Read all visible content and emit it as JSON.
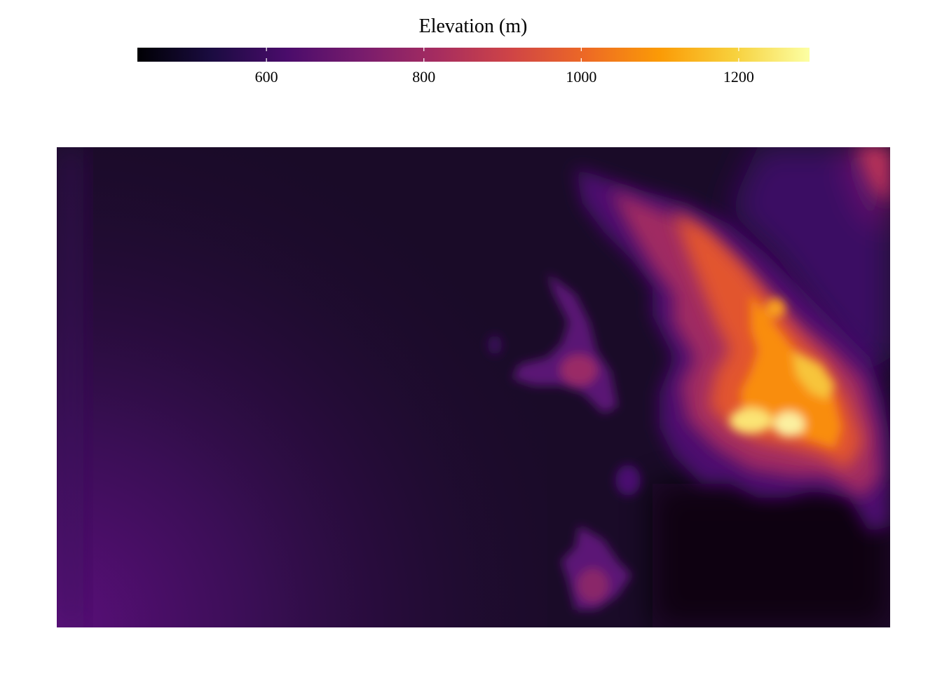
{
  "legend": {
    "title": "Elevation (m)",
    "ticks": [
      {
        "value": 600,
        "label": "600"
      },
      {
        "value": 800,
        "label": "800"
      },
      {
        "value": 1000,
        "label": "1000"
      },
      {
        "value": 1200,
        "label": "1200"
      }
    ],
    "range": [
      436,
      1290
    ],
    "colormap": "inferno",
    "colormap_stops": [
      "#000004",
      "#1b0c41",
      "#4a0c6b",
      "#781c6d",
      "#a52c60",
      "#cf4446",
      "#ed6925",
      "#fb9b06",
      "#f7d13d",
      "#fcffa4"
    ]
  },
  "map": {
    "type": "raster-heatmap",
    "variable": "Elevation (m)",
    "features": [
      {
        "name": "lowland-basin",
        "elevation_range": [
          440,
          560
        ]
      },
      {
        "name": "western-slope",
        "elevation_range": [
          560,
          660
        ]
      },
      {
        "name": "northeast-ridge",
        "elevation_range": [
          800,
          1050
        ]
      },
      {
        "name": "central-massif",
        "elevation_range": [
          950,
          1290
        ]
      },
      {
        "name": "isolated-hill-center",
        "elevation_range": [
          650,
          760
        ]
      },
      {
        "name": "isolated-hill-south",
        "elevation_range": [
          620,
          740
        ]
      },
      {
        "name": "southeast-lowland",
        "elevation_range": [
          436,
          470
        ]
      }
    ]
  }
}
